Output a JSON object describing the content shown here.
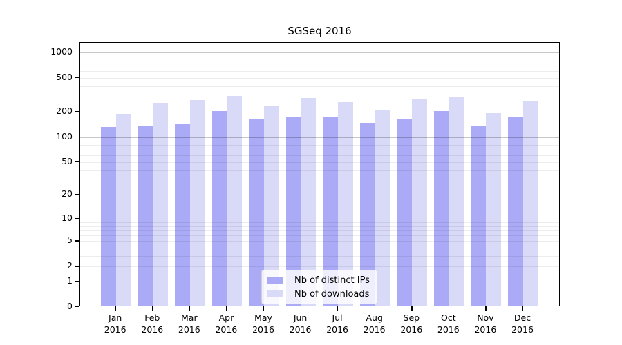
{
  "chart_data": {
    "type": "bar",
    "title": "SGSeq 2016",
    "categories": [
      "Jan 2016",
      "Feb 2016",
      "Mar 2016",
      "Apr 2016",
      "May 2016",
      "Jun 2016",
      "Jul 2016",
      "Aug 2016",
      "Sep 2016",
      "Oct 2016",
      "Nov 2016",
      "Dec 2016"
    ],
    "series": [
      {
        "name": "Nb of distinct IPs",
        "color": "#aaaaf6",
        "values": [
          127,
          132,
          138,
          195,
          157,
          168,
          165,
          143,
          156,
          197,
          131,
          168
        ]
      },
      {
        "name": "Nb of downloads",
        "color": "#d9d9f8",
        "values": [
          182,
          245,
          263,
          295,
          227,
          278,
          251,
          198,
          272,
          291,
          184,
          254
        ]
      }
    ],
    "y_axis": {
      "scale": "log1p",
      "tick_values": [
        0,
        1,
        2,
        5,
        10,
        20,
        50,
        100,
        200,
        500,
        1000
      ],
      "tick_labels": [
        "0",
        "1",
        "2",
        "5",
        "10",
        "20",
        "50",
        "100",
        "200",
        "500",
        "1000"
      ]
    },
    "grid": {
      "horizontal": true,
      "minor_lines": true,
      "major_at_powers_of_ten": true
    },
    "legend": {
      "position": "bottom-center-inside"
    }
  }
}
